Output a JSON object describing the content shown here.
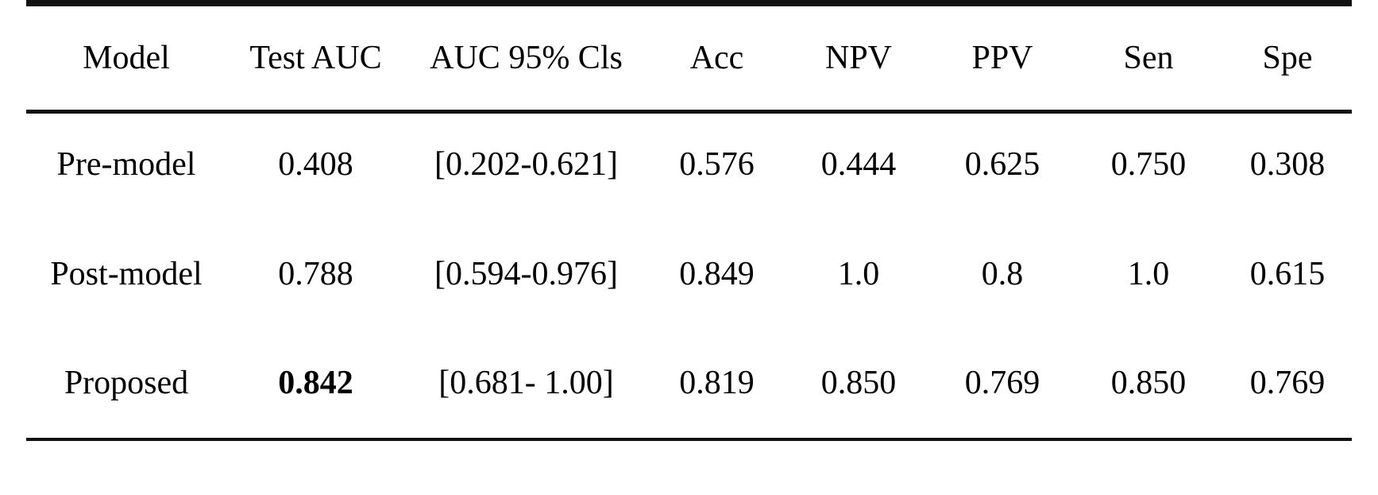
{
  "page": {
    "background_color": "#ffffff",
    "text_color": "#000000",
    "rule_color": "#111111"
  },
  "table": {
    "header": [
      "Model",
      "Test AUC",
      "AUC 95% Cls",
      "Acc",
      "NPV",
      "PPV",
      "Sen",
      "Spe"
    ],
    "rows": [
      {
        "cells": [
          "Pre-model",
          "0.408",
          "[0.202-0.621]",
          "0.576",
          "0.444",
          "0.625",
          "0.750",
          "0.308"
        ]
      },
      {
        "cells": [
          "Post-model",
          "0.788",
          "[0.594-0.976]",
          "0.849",
          "1.0",
          "0.8",
          "1.0",
          "0.615"
        ]
      },
      {
        "cells": [
          "Proposed",
          "0.842",
          "[0.681- 1.00]",
          "0.819",
          "0.850",
          "0.769",
          "0.850",
          "0.769"
        ]
      }
    ],
    "bold_value_note": "0.842"
  }
}
